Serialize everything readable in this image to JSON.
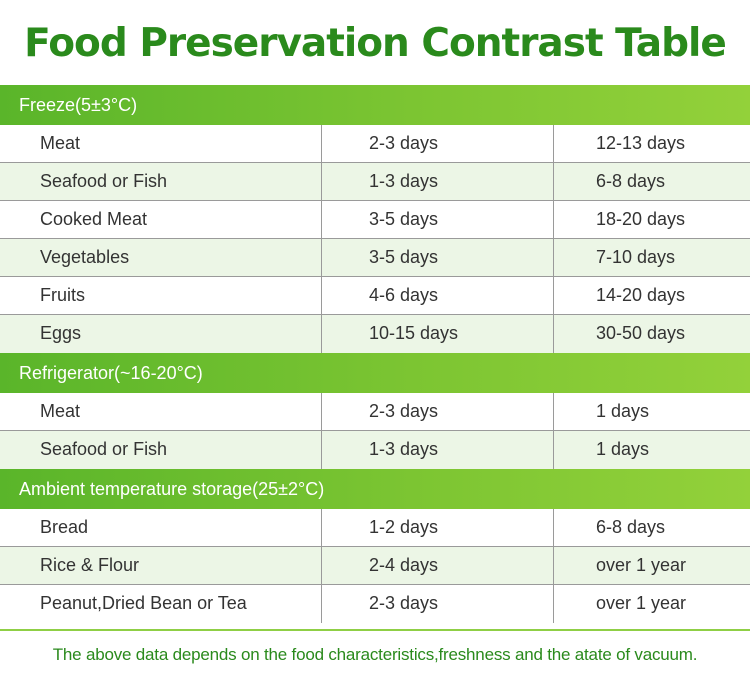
{
  "title": "Food Preservation Contrast Table",
  "sections": [
    {
      "header": "Freeze(5±3°C)",
      "rows": [
        [
          "Meat",
          "2-3 days",
          "12-13 days"
        ],
        [
          "Seafood or Fish",
          "1-3 days",
          "6-8 days"
        ],
        [
          "Cooked Meat",
          "3-5 days",
          "18-20 days"
        ],
        [
          "Vegetables",
          "3-5 days",
          "7-10 days"
        ],
        [
          "Fruits",
          "4-6 days",
          "14-20 days"
        ],
        [
          "Eggs",
          "10-15 days",
          "30-50 days"
        ]
      ]
    },
    {
      "header": "Refrigerator(~16-20°C)",
      "rows": [
        [
          "Meat",
          "2-3 days",
          "1 days"
        ],
        [
          "Seafood or Fish",
          "1-3 days",
          "1 days"
        ]
      ]
    },
    {
      "header": "Ambient temperature storage(25±2°C)",
      "rows": [
        [
          "Bread",
          "1-2 days",
          "6-8 days"
        ],
        [
          "Rice & Flour",
          "2-4 days",
          "over 1 year"
        ],
        [
          "Peanut,Dried Bean or Tea",
          "2-3 days",
          "over 1 year"
        ]
      ]
    }
  ],
  "footnote": "The above data depends on the food characteristics,freshness and the atate of vacuum.",
  "colors": {
    "title_green": "#2a8a1c",
    "header_green": "#6fbf2e",
    "row_alt": "#ecf6e6"
  }
}
